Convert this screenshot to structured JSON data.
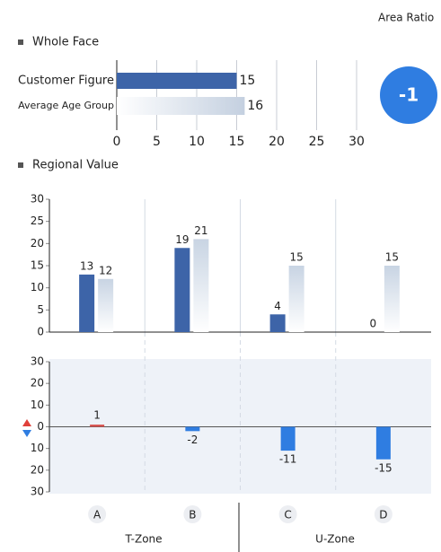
{
  "header": {
    "label": "Area Ratio"
  },
  "badge": {
    "value": -1
  },
  "zones": [
    "T-Zone",
    "U-Zone"
  ],
  "chart_data": [
    {
      "type": "hbar",
      "title": "Whole Face",
      "categories": [
        "Customer Figure",
        "Average Age Group"
      ],
      "values": [
        15,
        16
      ],
      "colors": [
        "#3d64a8",
        "#c4d0e0"
      ],
      "xlim": [
        0,
        30
      ],
      "xticks": [
        0,
        5,
        10,
        15,
        20,
        25,
        30
      ],
      "grid": true
    },
    {
      "type": "bar",
      "title": "Regional Value",
      "categories": [
        "A",
        "B",
        "C",
        "D"
      ],
      "series": [
        {
          "color": "#3d64a8",
          "values": [
            13,
            19,
            4,
            0
          ]
        },
        {
          "color": "#c8d4e3",
          "values": [
            12,
            21,
            15,
            15
          ]
        }
      ],
      "ylim": [
        0,
        30
      ],
      "yticks": [
        0,
        5,
        10,
        15,
        20,
        25,
        30
      ]
    },
    {
      "type": "diverging",
      "values": [
        1,
        -2,
        -11,
        -15
      ],
      "positive_color": "#d9534f",
      "negative_color": "#2f7de1",
      "ylim": [
        -30,
        30
      ],
      "yticks": [
        30,
        20,
        10,
        0,
        {
          "value": -10,
          "label": "10"
        },
        {
          "value": -20,
          "label": "20"
        },
        {
          "value": -30,
          "label": "30"
        }
      ]
    }
  ]
}
